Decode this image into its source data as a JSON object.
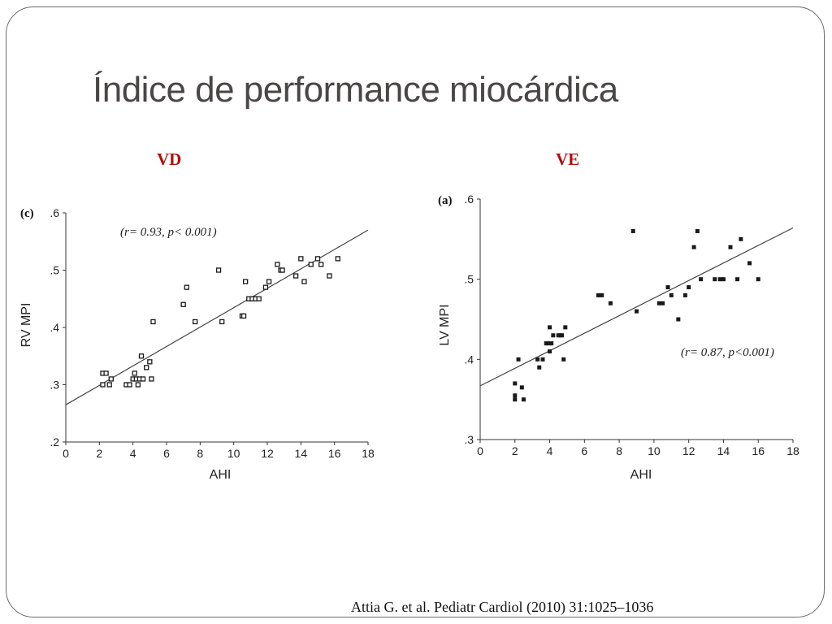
{
  "slide": {
    "title": "Índice de performance miocárdica",
    "citation": "Attia G. et al. Pediatr Cardiol (2010) 31:1025–1036"
  },
  "colors": {
    "heading": "#b01010",
    "title": "#4a4646",
    "marker": "#1a1a1a",
    "fit_line": "#444444"
  },
  "chart_data": [
    {
      "type": "scatter",
      "heading": "VD",
      "panel_label": "(c)",
      "annotation": "(r= 0.93, p< 0.001)",
      "xlabel": "AHI",
      "ylabel": "RV MPI",
      "xlim": [
        0,
        18
      ],
      "ylim": [
        0.2,
        0.6
      ],
      "x_ticks": [
        0,
        2,
        4,
        6,
        8,
        10,
        12,
        14,
        16,
        18
      ],
      "x_tick_labels": [
        "0",
        "2",
        "4",
        "6",
        "8",
        "10",
        "12",
        "14",
        "16",
        "18"
      ],
      "y_ticks": [
        0.2,
        0.3,
        0.4,
        0.5,
        0.6
      ],
      "y_tick_labels": [
        ".2",
        ".3",
        ".4",
        ".5",
        ".6"
      ],
      "marker": "open-square",
      "grid": false,
      "fit_line": [
        [
          0,
          0.265
        ],
        [
          18,
          0.57
        ]
      ],
      "points": [
        [
          2.2,
          0.3
        ],
        [
          2.2,
          0.32
        ],
        [
          2.4,
          0.32
        ],
        [
          2.6,
          0.3
        ],
        [
          2.7,
          0.31
        ],
        [
          3.6,
          0.3
        ],
        [
          3.8,
          0.3
        ],
        [
          4.0,
          0.31
        ],
        [
          4.1,
          0.32
        ],
        [
          4.2,
          0.31
        ],
        [
          4.3,
          0.3
        ],
        [
          4.4,
          0.31
        ],
        [
          4.5,
          0.35
        ],
        [
          4.6,
          0.31
        ],
        [
          4.8,
          0.33
        ],
        [
          5.0,
          0.34
        ],
        [
          5.1,
          0.31
        ],
        [
          5.2,
          0.41
        ],
        [
          7.0,
          0.44
        ],
        [
          7.2,
          0.47
        ],
        [
          7.7,
          0.41
        ],
        [
          9.1,
          0.5
        ],
        [
          9.3,
          0.41
        ],
        [
          10.5,
          0.42
        ],
        [
          10.6,
          0.42
        ],
        [
          10.7,
          0.48
        ],
        [
          10.9,
          0.45
        ],
        [
          11.1,
          0.45
        ],
        [
          11.3,
          0.45
        ],
        [
          11.5,
          0.45
        ],
        [
          11.9,
          0.47
        ],
        [
          12.1,
          0.48
        ],
        [
          12.6,
          0.51
        ],
        [
          12.8,
          0.5
        ],
        [
          12.9,
          0.5
        ],
        [
          13.7,
          0.49
        ],
        [
          14.0,
          0.52
        ],
        [
          14.2,
          0.48
        ],
        [
          14.6,
          0.51
        ],
        [
          15.0,
          0.52
        ],
        [
          15.2,
          0.51
        ],
        [
          15.7,
          0.49
        ],
        [
          16.2,
          0.52
        ]
      ]
    },
    {
      "type": "scatter",
      "heading": "VE",
      "panel_label": "(a)",
      "annotation": "(r= 0.87, p<0.001)",
      "xlabel": "AHI",
      "ylabel": "LV MPI",
      "xlim": [
        0,
        18
      ],
      "ylim": [
        0.3,
        0.6
      ],
      "x_ticks": [
        0,
        2,
        4,
        6,
        8,
        10,
        12,
        14,
        16,
        18
      ],
      "x_tick_labels": [
        "0",
        "2",
        "4",
        "6",
        "8",
        "10",
        "12",
        "14",
        "16",
        "18"
      ],
      "y_ticks": [
        0.3,
        0.4,
        0.5,
        0.6
      ],
      "y_tick_labels": [
        ".3",
        ".4",
        ".5",
        ".6"
      ],
      "marker": "filled-square",
      "grid": false,
      "fit_line": [
        [
          0,
          0.367
        ],
        [
          18,
          0.564
        ]
      ],
      "points": [
        [
          2.0,
          0.37
        ],
        [
          2.0,
          0.355
        ],
        [
          2.0,
          0.35
        ],
        [
          2.2,
          0.4
        ],
        [
          2.4,
          0.365
        ],
        [
          2.5,
          0.35
        ],
        [
          3.3,
          0.4
        ],
        [
          3.4,
          0.39
        ],
        [
          3.6,
          0.4
        ],
        [
          3.8,
          0.42
        ],
        [
          3.9,
          0.42
        ],
        [
          4.0,
          0.41
        ],
        [
          4.0,
          0.44
        ],
        [
          4.1,
          0.42
        ],
        [
          4.2,
          0.43
        ],
        [
          4.5,
          0.43
        ],
        [
          4.6,
          0.43
        ],
        [
          4.7,
          0.43
        ],
        [
          4.8,
          0.4
        ],
        [
          4.9,
          0.44
        ],
        [
          6.8,
          0.48
        ],
        [
          7.0,
          0.48
        ],
        [
          7.5,
          0.47
        ],
        [
          8.8,
          0.56
        ],
        [
          9.0,
          0.46
        ],
        [
          10.3,
          0.47
        ],
        [
          10.5,
          0.47
        ],
        [
          10.8,
          0.49
        ],
        [
          11.0,
          0.48
        ],
        [
          11.4,
          0.45
        ],
        [
          11.8,
          0.48
        ],
        [
          12.0,
          0.49
        ],
        [
          12.3,
          0.54
        ],
        [
          12.5,
          0.56
        ],
        [
          12.7,
          0.5
        ],
        [
          13.5,
          0.5
        ],
        [
          13.8,
          0.5
        ],
        [
          14.0,
          0.5
        ],
        [
          14.4,
          0.54
        ],
        [
          14.8,
          0.5
        ],
        [
          15.0,
          0.55
        ],
        [
          15.5,
          0.52
        ],
        [
          16.0,
          0.5
        ]
      ]
    }
  ]
}
